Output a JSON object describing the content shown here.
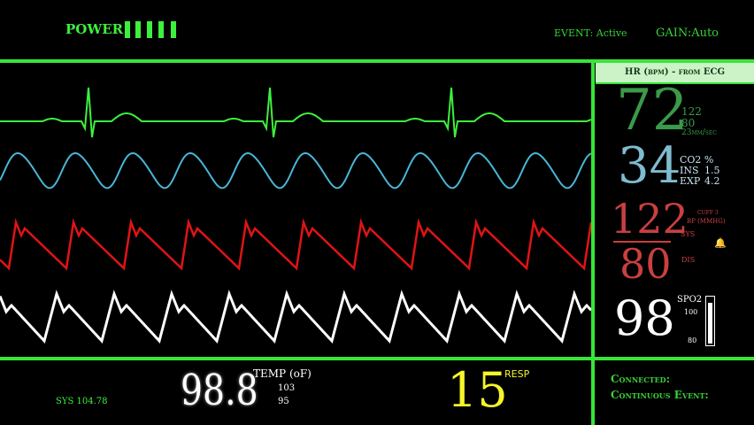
{
  "header": {
    "power_label": "POWER",
    "power_bars": 5,
    "event_label": "EVENT: Active",
    "gain_label": "GAIN:Auto"
  },
  "panel": {
    "hr_header": "HR (bpm) - from ECG",
    "hr": {
      "value": "72",
      "sub1": "122",
      "sub2": "80",
      "sub3": "23mm/sec"
    },
    "co2": {
      "value": "34",
      "label": "CO2 %",
      "ins_label": "INS",
      "ins_value": "1.5",
      "exp_label": "EXP",
      "exp_value": "4.2"
    },
    "bp": {
      "sys_value": "122",
      "dis_value": "80",
      "cuff_label": "CUFF 3",
      "bp_label": "BP (MMHG)",
      "sys_label": "SYS",
      "dis_label": "DIS",
      "bell_icon": "bell-icon"
    },
    "spo2": {
      "value": "98",
      "label": "SPO2",
      "scale_top": "100",
      "scale_bottom": "80",
      "level_fraction": 0.9
    }
  },
  "bottom": {
    "sys_text": "SYS 104.78",
    "temp_value": "98.8",
    "temp_label": "TEMP (oF)",
    "temp_high": "103",
    "temp_low": "95",
    "resp_value": "15",
    "resp_label": "RESP",
    "connected_label": "Connected:",
    "continuous_label": "Continuous Event:"
  },
  "colors": {
    "ecg": "#3df03d",
    "co2": "#49b6d6",
    "bp": "#e01414",
    "spo2": "#ffffff",
    "hr_value": "#3a9a4a",
    "co2_value": "#7fbcd0",
    "bp_value": "#c84040",
    "resp_value": "#f5f52a",
    "frame": "#37e637"
  }
}
